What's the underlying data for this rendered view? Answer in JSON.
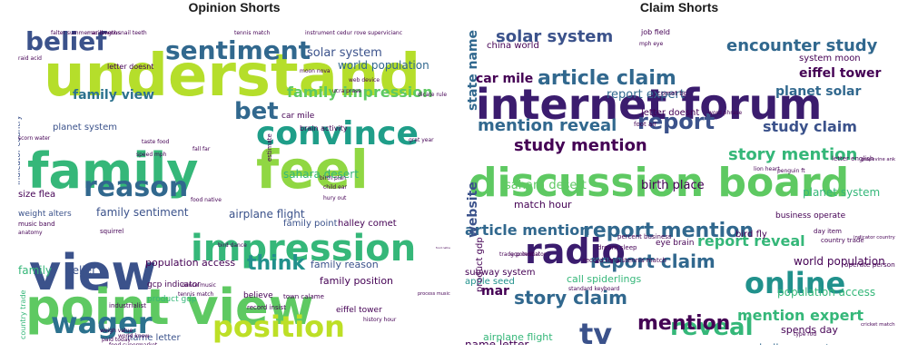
{
  "titles": {
    "left": "Opinion Shorts",
    "right": "Claim Shorts"
  },
  "palette": {
    "purple": "#440154",
    "indigo": "#3b528b",
    "blue": "#31688e",
    "teal": "#21918c",
    "green": "#35b779",
    "lime": "#90d743",
    "yellow": "#c8e020"
  },
  "left_cloud": [
    {
      "t": "understand",
      "c": "#b5de2b",
      "s": 64
    },
    {
      "t": "family",
      "c": "#35b779",
      "s": 54
    },
    {
      "t": "feel",
      "c": "#90d743",
      "s": 58
    },
    {
      "t": "view",
      "c": "#3b528b",
      "s": 54
    },
    {
      "t": "point view",
      "c": "#5ec962",
      "s": 54
    },
    {
      "t": "impression",
      "c": "#35b779",
      "s": 40
    },
    {
      "t": "convince",
      "c": "#1f9e89",
      "s": 36
    },
    {
      "t": "sentiment",
      "c": "#31688e",
      "s": 28
    },
    {
      "t": "reason",
      "c": "#31688e",
      "s": 30
    },
    {
      "t": "position",
      "c": "#bddf26",
      "s": 32
    },
    {
      "t": "wager",
      "c": "#2c728e",
      "s": 32
    },
    {
      "t": "belief",
      "c": "#3b528b",
      "s": 28
    },
    {
      "t": "bet",
      "c": "#31688e",
      "s": 26
    },
    {
      "t": "think",
      "c": "#21918c",
      "s": 22
    },
    {
      "t": "family impression",
      "c": "#5ec962",
      "s": 16
    },
    {
      "t": "family view",
      "c": "#2c728e",
      "s": 14
    },
    {
      "t": "solar system",
      "c": "#3b528b",
      "s": 13
    },
    {
      "t": "world population",
      "c": "#31688e",
      "s": 12
    },
    {
      "t": "family sentiment",
      "c": "#3b528b",
      "s": 12
    },
    {
      "t": "sahara desert",
      "c": "#35b779",
      "s": 12
    },
    {
      "t": "airplane flight",
      "c": "#3b528b",
      "s": 12
    },
    {
      "t": "family point",
      "c": "#3b528b",
      "s": 10
    },
    {
      "t": "halley comet",
      "c": "#440154",
      "s": 10
    },
    {
      "t": "family reason",
      "c": "#3b528b",
      "s": 11
    },
    {
      "t": "family position",
      "c": "#440154",
      "s": 11
    },
    {
      "t": "population access",
      "c": "#440154",
      "s": 11
    },
    {
      "t": "family",
      "c": "#35b779",
      "s": 12
    },
    {
      "t": "belief",
      "c": "#3b528b",
      "s": 12
    },
    {
      "t": "planet system",
      "c": "#3b528b",
      "s": 10
    },
    {
      "t": "size flea",
      "c": "#440154",
      "s": 10
    },
    {
      "t": "weight alters",
      "c": "#3b528b",
      "s": 9
    },
    {
      "t": "gcp indicator",
      "c": "#440154",
      "s": 9
    },
    {
      "t": "product gdp",
      "c": "#35b779",
      "s": 9
    },
    {
      "t": "name letter",
      "c": "#3b528b",
      "s": 10
    },
    {
      "t": "state name",
      "c": "#3b528b",
      "s": 9
    },
    {
      "t": "planet solar",
      "c": "#31688e",
      "s": 9
    },
    {
      "t": "eiffel tower",
      "c": "#440154",
      "s": 9
    },
    {
      "t": "bird fly",
      "c": "#35b779",
      "s": 9
    },
    {
      "t": "believe",
      "c": "#440154",
      "s": 9
    },
    {
      "t": "car mile",
      "c": "#440154",
      "s": 9
    },
    {
      "t": "brain activity",
      "c": "#440154",
      "s": 8
    },
    {
      "t": "letter doesnt",
      "c": "#440154",
      "s": 8
    },
    {
      "t": "indicator country",
      "c": "#3b528b",
      "s": 9
    },
    {
      "t": "country trade",
      "c": "#35b779",
      "s": 8
    },
    {
      "t": "music band",
      "c": "#440154",
      "s": 7
    },
    {
      "t": "record insist",
      "c": "#440154",
      "s": 7
    },
    {
      "t": "town calame",
      "c": "#440154",
      "s": 7
    },
    {
      "t": "food supermarket",
      "c": "#440154",
      "s": 6
    },
    {
      "t": "history hour",
      "c": "#440154",
      "s": 6
    },
    {
      "t": "dance music",
      "c": "#440154",
      "s": 6
    },
    {
      "t": "squirrel",
      "c": "#440154",
      "s": 7
    },
    {
      "t": "industrialist",
      "c": "#440154",
      "s": 7
    },
    {
      "t": "calame cole",
      "c": "#440154",
      "s": 6
    },
    {
      "t": "mar length",
      "c": "#440154",
      "s": 6
    },
    {
      "t": "moon nova",
      "c": "#440154",
      "s": 6
    },
    {
      "t": "web device",
      "c": "#440154",
      "s": 6
    },
    {
      "t": "ucra prase",
      "c": "#440154",
      "s": 6
    },
    {
      "t": "birth plan",
      "c": "#440154",
      "s": 6
    },
    {
      "t": "child ear",
      "c": "#440154",
      "s": 6
    },
    {
      "t": "hury out",
      "c": "#440154",
      "s": 6
    },
    {
      "t": "speed mph",
      "c": "#440154",
      "s": 6
    },
    {
      "t": "taste food",
      "c": "#440154",
      "s": 6
    },
    {
      "t": "food native",
      "c": "#440154",
      "s": 6
    },
    {
      "t": "anatomy",
      "c": "#440154",
      "s": 6
    },
    {
      "t": "fall far",
      "c": "#440154",
      "s": 6
    },
    {
      "t": "estimate",
      "c": "#440154",
      "s": 7
    },
    {
      "t": "paid today",
      "c": "#440154",
      "s": 6
    },
    {
      "t": "bird dance",
      "c": "#440154",
      "s": 6
    },
    {
      "t": "day nature",
      "c": "#440154",
      "s": 6
    },
    {
      "t": "tennis match",
      "c": "#440154",
      "s": 6
    },
    {
      "t": "falter summer acid venus",
      "c": "#440154",
      "s": 6
    },
    {
      "t": "snail teeth",
      "c": "#440154",
      "s": 6
    },
    {
      "t": "rove supervicianc",
      "c": "#440154",
      "s": 6
    },
    {
      "t": "instrument cedur",
      "c": "#440154",
      "s": 6
    },
    {
      "t": "raid acid",
      "c": "#440154",
      "s": 6
    },
    {
      "t": "dicate rule",
      "c": "#440154",
      "s": 6
    },
    {
      "t": "person appear",
      "c": "#440154",
      "s": 6
    },
    {
      "t": "world know",
      "c": "#440154",
      "s": 6
    },
    {
      "t": "scorn water",
      "c": "#440154",
      "s": 6
    },
    {
      "t": "weigh value",
      "c": "#440154",
      "s": 6
    },
    {
      "t": "grat year",
      "c": "#440154",
      "s": 6
    },
    {
      "t": "food native",
      "c": "#440154",
      "s": 6
    },
    {
      "t": "process music",
      "c": "#440154",
      "s": 6
    },
    {
      "t": "tennis match",
      "c": "#440154",
      "s": 6
    }
  ],
  "right_cloud": [
    {
      "t": "internet forum",
      "c": "#3b1c6e",
      "s": 46
    },
    {
      "t": "discussion board",
      "c": "#5ec962",
      "s": 44
    },
    {
      "t": "radio",
      "c": "#3b1c6e",
      "s": 38
    },
    {
      "t": "online",
      "c": "#21918c",
      "s": 32
    },
    {
      "t": "tv",
      "c": "#3b528b",
      "s": 32
    },
    {
      "t": "reveal",
      "c": "#35b779",
      "s": 26
    },
    {
      "t": "report",
      "c": "#3b528b",
      "s": 24
    },
    {
      "t": "mention",
      "c": "#440154",
      "s": 22
    },
    {
      "t": "article claim",
      "c": "#31688e",
      "s": 22
    },
    {
      "t": "report mention",
      "c": "#31688e",
      "s": 22
    },
    {
      "t": "report claim",
      "c": "#31688e",
      "s": 20
    },
    {
      "t": "story claim",
      "c": "#31688e",
      "s": 20
    },
    {
      "t": "encounter study",
      "c": "#31688e",
      "s": 18
    },
    {
      "t": "solar system",
      "c": "#3b528b",
      "s": 18
    },
    {
      "t": "study mention",
      "c": "#440154",
      "s": 18
    },
    {
      "t": "story mention",
      "c": "#35b779",
      "s": 18
    },
    {
      "t": "mention reveal",
      "c": "#31688e",
      "s": 18
    },
    {
      "t": "article mention",
      "c": "#31688e",
      "s": 16
    },
    {
      "t": "report reveal",
      "c": "#35b779",
      "s": 16
    },
    {
      "t": "study claim",
      "c": "#3b528b",
      "s": 16
    },
    {
      "t": "mention expert",
      "c": "#35b779",
      "s": 16
    },
    {
      "t": "eiffel tower",
      "c": "#440154",
      "s": 14
    },
    {
      "t": "planet solar",
      "c": "#31688e",
      "s": 14
    },
    {
      "t": "report expert",
      "c": "#31688e",
      "s": 13
    },
    {
      "t": "sahara desert",
      "c": "#5ec962",
      "s": 13
    },
    {
      "t": "birth place",
      "c": "#440154",
      "s": 13
    },
    {
      "t": "planet system",
      "c": "#35b779",
      "s": 12
    },
    {
      "t": "world population",
      "c": "#440154",
      "s": 12
    },
    {
      "t": "population access",
      "c": "#35b779",
      "s": 12
    },
    {
      "t": "halley comet",
      "c": "#31688e",
      "s": 12
    },
    {
      "t": "world subway",
      "c": "#440154",
      "s": 12
    },
    {
      "t": "spends day",
      "c": "#440154",
      "s": 11
    },
    {
      "t": "name letter",
      "c": "#440154",
      "s": 12
    },
    {
      "t": "airplane flight",
      "c": "#35b779",
      "s": 11
    },
    {
      "t": "rock australia",
      "c": "#440154",
      "s": 11
    },
    {
      "t": "subway system",
      "c": "#440154",
      "s": 10
    },
    {
      "t": "apple seed",
      "c": "#21918c",
      "s": 10
    },
    {
      "t": "bird fly",
      "c": "#440154",
      "s": 10
    },
    {
      "t": "call spiderlings",
      "c": "#35b779",
      "s": 11
    },
    {
      "t": "product gdp",
      "c": "#440154",
      "s": 10
    },
    {
      "t": "website",
      "c": "#3b528b",
      "s": 14
    },
    {
      "t": "state name",
      "c": "#31688e",
      "s": 14
    },
    {
      "t": "car mile",
      "c": "#440154",
      "s": 14
    },
    {
      "t": "mar",
      "c": "#440154",
      "s": 14
    },
    {
      "t": "match hour",
      "c": "#440154",
      "s": 11
    },
    {
      "t": "china world",
      "c": "#440154",
      "s": 10
    },
    {
      "t": "system moon",
      "c": "#440154",
      "s": 10
    },
    {
      "t": "business operate",
      "c": "#440154",
      "s": 9
    },
    {
      "t": "letter doesnt",
      "c": "#440154",
      "s": 10
    },
    {
      "t": "indicator country",
      "c": "#440154",
      "s": 9
    },
    {
      "t": "operate person",
      "c": "#440154",
      "s": 9
    },
    {
      "t": "cricket match",
      "c": "#440154",
      "s": 8
    },
    {
      "t": "job field",
      "c": "#440154",
      "s": 8
    },
    {
      "t": "eye brain",
      "c": "#440154",
      "s": 9
    },
    {
      "t": "access internet",
      "c": "#440154",
      "s": 8
    },
    {
      "t": "record tennistennis match",
      "c": "#440154",
      "s": 7
    },
    {
      "t": "dream sleep",
      "c": "#440154",
      "s": 7
    },
    {
      "t": "percent business",
      "c": "#440154",
      "s": 7
    },
    {
      "t": "day item",
      "c": "#440154",
      "s": 7
    },
    {
      "t": "country trade",
      "c": "#440154",
      "s": 7
    },
    {
      "t": "letter english",
      "c": "#440154",
      "s": 7
    },
    {
      "t": "grapevine ank",
      "c": "#440154",
      "s": 7
    },
    {
      "t": "foot air",
      "c": "#440154",
      "s": 7
    },
    {
      "t": "comet bc",
      "c": "#440154",
      "s": 7
    },
    {
      "t": "word phrase",
      "c": "#440154",
      "s": 6
    },
    {
      "t": "mph eye",
      "c": "#440154",
      "s": 6
    },
    {
      "t": "lion heart",
      "c": "#440154",
      "s": 6
    },
    {
      "t": "penguin ft",
      "c": "#440154",
      "s": 6
    },
    {
      "t": "travel mph",
      "c": "#440154",
      "s": 6
    },
    {
      "t": "legs flamingo",
      "c": "#440154",
      "s": 6
    },
    {
      "t": "type rod",
      "c": "#440154",
      "s": 6
    },
    {
      "t": "ft tall",
      "c": "#440154",
      "s": 6
    },
    {
      "t": "flamingo ankle",
      "c": "#440154",
      "s": 6
    },
    {
      "t": "trade potential",
      "c": "#440154",
      "s": 6
    },
    {
      "t": "standard keyboard",
      "c": "#440154",
      "s": 6
    },
    {
      "t": "gcp indicator",
      "c": "#440154",
      "s": 6
    }
  ]
}
